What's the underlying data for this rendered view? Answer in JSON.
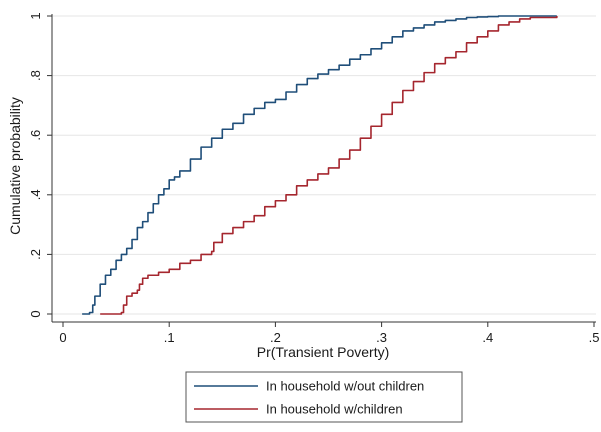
{
  "chart_data": {
    "type": "line",
    "title": "",
    "xlabel": "Pr(Transient Poverty)",
    "ylabel": "Cumulative probability",
    "xlim": [
      0,
      0.5
    ],
    "ylim": [
      0,
      1
    ],
    "x_ticks": [
      0,
      0.1,
      0.2,
      0.3,
      0.4,
      0.5
    ],
    "x_tick_labels": [
      "0",
      ".1",
      ".2",
      ".3",
      ".4",
      ".5"
    ],
    "y_ticks": [
      0,
      0.2,
      0.4,
      0.6,
      0.8,
      1
    ],
    "y_tick_labels": [
      "0",
      ".2",
      ".4",
      ".6",
      ".8",
      "1"
    ],
    "grid": "horizontal",
    "legend_position": "bottom",
    "series": [
      {
        "name": "In household w/out children",
        "color": "#1f4e79",
        "x": [
          0.018,
          0.025,
          0.028,
          0.03,
          0.035,
          0.04,
          0.045,
          0.05,
          0.055,
          0.06,
          0.065,
          0.07,
          0.075,
          0.08,
          0.085,
          0.09,
          0.095,
          0.1,
          0.105,
          0.11,
          0.12,
          0.13,
          0.14,
          0.15,
          0.16,
          0.17,
          0.18,
          0.19,
          0.2,
          0.21,
          0.22,
          0.23,
          0.24,
          0.25,
          0.26,
          0.27,
          0.28,
          0.29,
          0.3,
          0.31,
          0.32,
          0.33,
          0.34,
          0.35,
          0.36,
          0.37,
          0.38,
          0.39,
          0.4,
          0.41,
          0.42,
          0.44,
          0.465
        ],
        "y": [
          0.0,
          0.005,
          0.03,
          0.06,
          0.1,
          0.13,
          0.15,
          0.18,
          0.2,
          0.22,
          0.25,
          0.29,
          0.31,
          0.34,
          0.37,
          0.4,
          0.42,
          0.45,
          0.46,
          0.48,
          0.52,
          0.56,
          0.59,
          0.62,
          0.64,
          0.67,
          0.69,
          0.71,
          0.72,
          0.745,
          0.77,
          0.79,
          0.805,
          0.82,
          0.835,
          0.855,
          0.87,
          0.89,
          0.91,
          0.93,
          0.95,
          0.96,
          0.97,
          0.98,
          0.985,
          0.99,
          0.995,
          0.997,
          0.998,
          1.0,
          1.0,
          1.0,
          1.0
        ]
      },
      {
        "name": "In household w/children",
        "color": "#a5262e",
        "x": [
          0.035,
          0.05,
          0.055,
          0.057,
          0.06,
          0.065,
          0.07,
          0.072,
          0.075,
          0.08,
          0.09,
          0.1,
          0.11,
          0.12,
          0.13,
          0.14,
          0.142,
          0.15,
          0.16,
          0.17,
          0.18,
          0.19,
          0.2,
          0.21,
          0.22,
          0.23,
          0.24,
          0.25,
          0.26,
          0.27,
          0.28,
          0.29,
          0.3,
          0.31,
          0.32,
          0.33,
          0.34,
          0.35,
          0.36,
          0.37,
          0.38,
          0.39,
          0.4,
          0.41,
          0.42,
          0.43,
          0.44,
          0.465
        ],
        "y": [
          0.0,
          0.0,
          0.005,
          0.03,
          0.06,
          0.07,
          0.08,
          0.1,
          0.12,
          0.13,
          0.14,
          0.15,
          0.17,
          0.18,
          0.2,
          0.21,
          0.24,
          0.27,
          0.29,
          0.31,
          0.33,
          0.36,
          0.38,
          0.4,
          0.43,
          0.45,
          0.47,
          0.49,
          0.52,
          0.55,
          0.59,
          0.63,
          0.67,
          0.71,
          0.75,
          0.78,
          0.81,
          0.84,
          0.86,
          0.88,
          0.91,
          0.93,
          0.95,
          0.97,
          0.98,
          0.99,
          0.995,
          1.0
        ]
      }
    ]
  }
}
